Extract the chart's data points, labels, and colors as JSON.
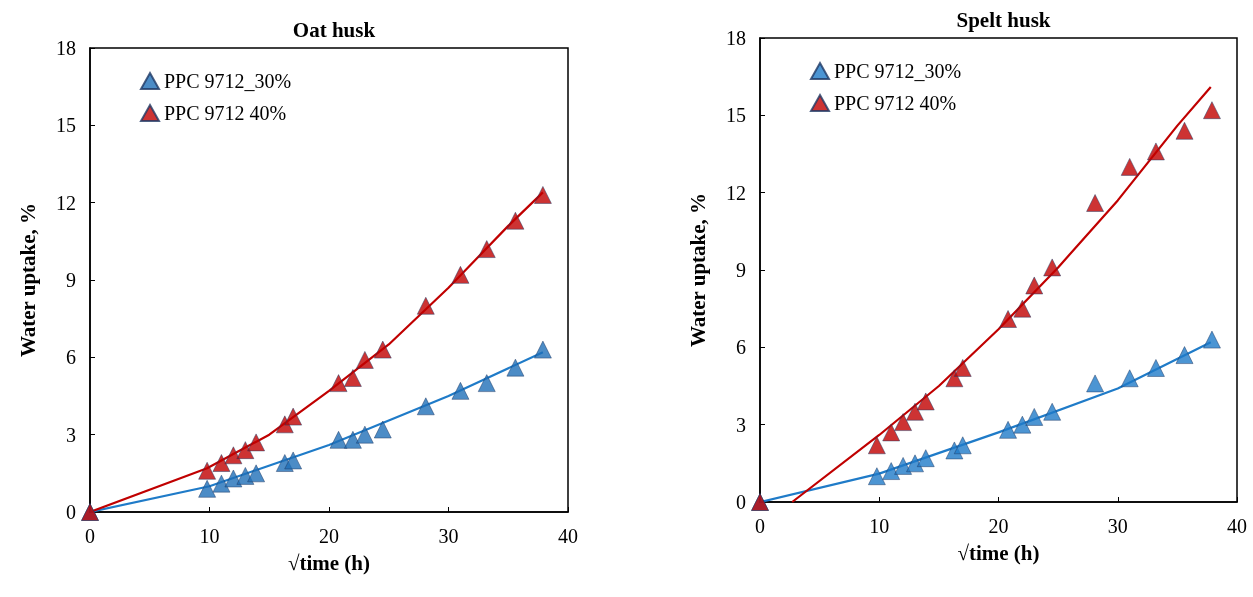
{
  "chart_data": [
    {
      "type": "scatter",
      "title": "Oat husk",
      "xlabel": "√time (h)",
      "ylabel": "Water uptake, %",
      "marker": "triangle",
      "legend": "top left",
      "grid": false,
      "xlim": [
        0,
        40
      ],
      "xticks": [
        0,
        10,
        20,
        30,
        40
      ],
      "ylim": [
        0,
        18
      ],
      "yticks": [
        0,
        3,
        6,
        9,
        12,
        15,
        18
      ],
      "x": [
        0,
        9.8,
        11,
        12,
        13,
        13.9,
        16.3,
        17,
        20.8,
        22,
        23,
        24.5,
        28.1,
        31,
        33.2,
        35.6,
        37.9
      ],
      "series": [
        {
          "name": "PPC 9712_30%",
          "color": "#1f6fb8",
          "values": [
            0,
            0.9,
            1.1,
            1.3,
            1.4,
            1.5,
            1.9,
            2.0,
            2.8,
            2.8,
            3.0,
            3.2,
            4.1,
            4.7,
            5.0,
            5.6,
            6.3
          ]
        },
        {
          "name": "PPC 9712 40%",
          "color": "#c00000",
          "values": [
            0,
            1.6,
            1.9,
            2.2,
            2.4,
            2.7,
            3.4,
            3.7,
            5.0,
            5.2,
            5.9,
            6.3,
            8.0,
            9.2,
            10.2,
            11.3,
            12.3
          ]
        },
        {
          "type": "line",
          "marker": "none",
          "color": "#1f7bc8",
          "x": [
            0,
            10,
            20,
            30,
            37.9
          ],
          "values": [
            0,
            1.0,
            2.6,
            4.5,
            6.2
          ]
        },
        {
          "type": "line",
          "marker": "none",
          "color": "#c00000",
          "x": [
            0,
            9.8,
            15,
            20,
            25,
            30,
            35,
            37.9
          ],
          "values": [
            0,
            1.7,
            3.0,
            4.7,
            6.5,
            8.7,
            11.1,
            12.4
          ]
        }
      ]
    },
    {
      "type": "scatter",
      "title": "Spelt husk",
      "xlabel": "√time (h)",
      "ylabel": "Water uptake, %",
      "marker": "triangle",
      "legend": "top left",
      "grid": false,
      "xlim": [
        0,
        40
      ],
      "xticks": [
        0,
        10,
        20,
        30,
        40
      ],
      "ylim": [
        0,
        18
      ],
      "yticks": [
        0,
        3,
        6,
        9,
        12,
        15,
        18
      ],
      "x": [
        0,
        9.8,
        11,
        12,
        13,
        13.9,
        16.3,
        17,
        20.8,
        22,
        23,
        24.5,
        28.1,
        31,
        33.2,
        35.6,
        37.9
      ],
      "series": [
        {
          "name": "PPC 9712_30%",
          "color": "#1f7bc8",
          "values": [
            0,
            1.0,
            1.2,
            1.4,
            1.5,
            1.7,
            2.0,
            2.2,
            2.8,
            3.0,
            3.3,
            3.5,
            4.6,
            4.8,
            5.2,
            5.7,
            6.3
          ]
        },
        {
          "name": "PPC 9712 40%",
          "color": "#c00000",
          "values": [
            0,
            2.2,
            2.7,
            3.1,
            3.5,
            3.9,
            4.8,
            5.2,
            7.1,
            7.5,
            8.4,
            9.1,
            11.6,
            13.0,
            13.6,
            14.4,
            15.2
          ]
        },
        {
          "type": "line",
          "marker": "none",
          "color": "#1f7bc8",
          "x": [
            0,
            10,
            20,
            30,
            37.8
          ],
          "values": [
            0,
            1.1,
            2.7,
            4.4,
            6.2
          ]
        },
        {
          "type": "line",
          "marker": "none",
          "color": "#c00000",
          "x": [
            2.7,
            10,
            15,
            20,
            25,
            30,
            35,
            37.8
          ],
          "values": [
            0,
            2.6,
            4.5,
            6.7,
            9.1,
            11.7,
            14.6,
            16.1
          ]
        }
      ]
    }
  ]
}
